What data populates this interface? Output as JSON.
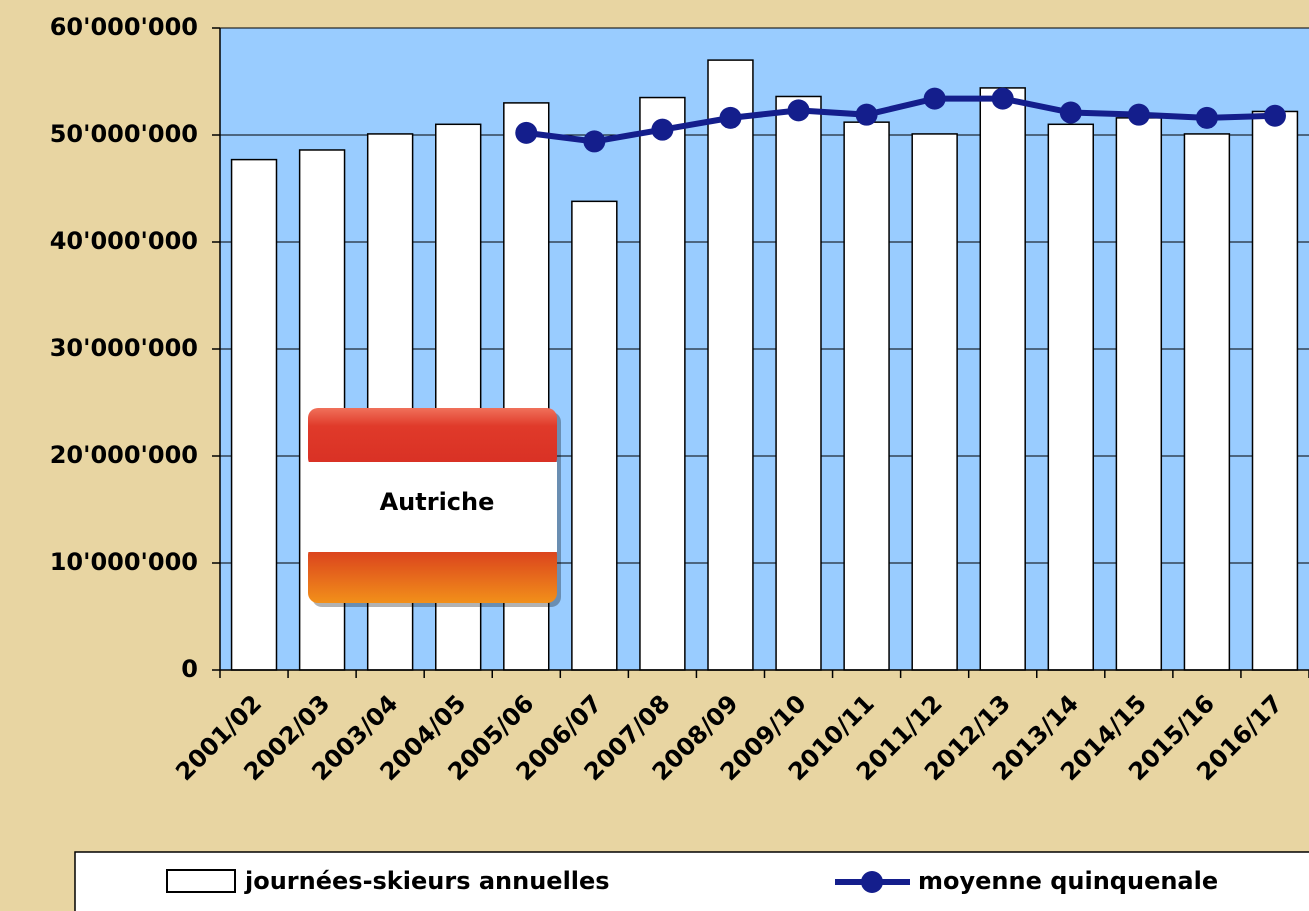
{
  "chart_data": {
    "type": "bar_line",
    "categories": [
      "2001/02",
      "2002/03",
      "2003/04",
      "2004/05",
      "2005/06",
      "2006/07",
      "2007/08",
      "2008/09",
      "2009/10",
      "2010/11",
      "2011/12",
      "2012/13",
      "2013/14",
      "2014/15",
      "2015/16",
      "2016/17"
    ],
    "series": [
      {
        "name": "journées-skieurs annuelles",
        "type": "bar",
        "color": "#ffffff",
        "values": [
          47700000,
          48600000,
          50100000,
          51000000,
          53000000,
          43800000,
          53500000,
          57000000,
          53600000,
          51200000,
          50100000,
          54400000,
          51000000,
          51600000,
          50100000,
          52200000
        ]
      },
      {
        "name": "moyenne quinquenale",
        "type": "line",
        "color": "#141e8c",
        "values": [
          null,
          null,
          null,
          null,
          50200000,
          49400000,
          50500000,
          51600000,
          52300000,
          51900000,
          53400000,
          53400000,
          52100000,
          51900000,
          51600000,
          51800000
        ]
      }
    ],
    "annotation": "Autriche",
    "ylim": [
      0,
      60000000
    ],
    "yticks": [
      {
        "value": 0,
        "label": "0"
      },
      {
        "value": 10000000,
        "label": "10'000'000"
      },
      {
        "value": 20000000,
        "label": "20'000'000"
      },
      {
        "value": 30000000,
        "label": "30'000'000"
      },
      {
        "value": 40000000,
        "label": "40'000'000"
      },
      {
        "value": 50000000,
        "label": "50'000'000"
      },
      {
        "value": 60000000,
        "label": "60'000'000"
      }
    ],
    "grid": true,
    "legend": "bottom"
  }
}
